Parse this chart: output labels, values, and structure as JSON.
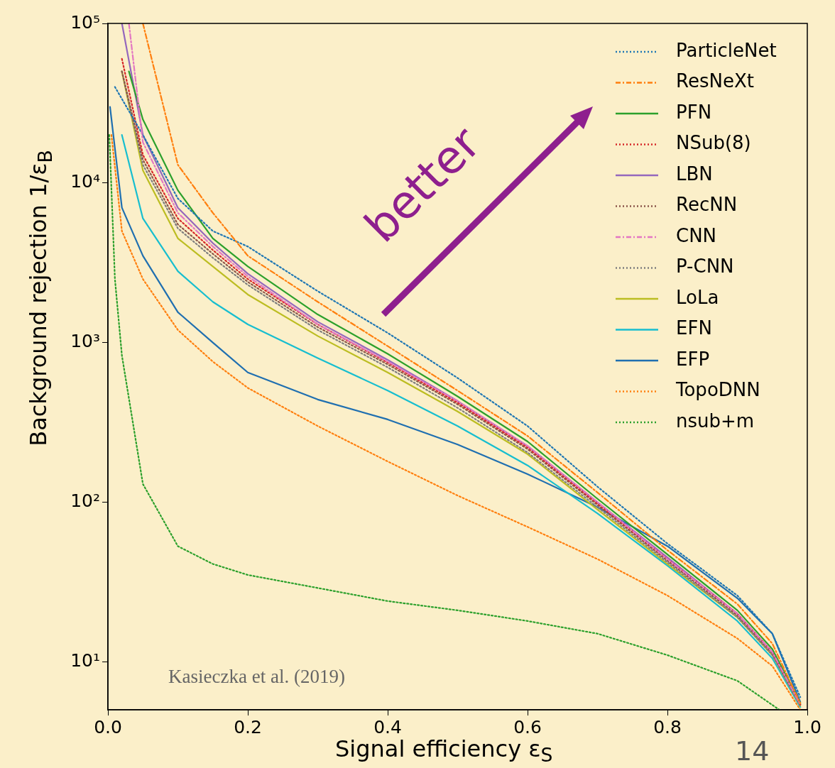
{
  "chart_data": {
    "type": "line",
    "xlabel": "Signal efficiency ε$_{S}$",
    "ylabel": "Background rejection 1/ε$_{B}$",
    "log": "y",
    "xlim": [
      0,
      1
    ],
    "ylim": [
      5,
      100000
    ],
    "xticks": [
      {
        "value": 0,
        "label": "0.0"
      },
      0.2,
      0.4,
      0.6,
      0.8,
      {
        "value": 1,
        "label": "1.0"
      }
    ],
    "yticks": [
      {
        "value": 10,
        "label": "10¹"
      },
      {
        "value": 100,
        "label": "10²"
      },
      {
        "value": 1000,
        "label": "10³"
      },
      {
        "value": 10000,
        "label": "10⁴"
      },
      {
        "value": 100000,
        "label": "10⁵"
      }
    ],
    "legend": "top right",
    "marker": "none",
    "grid": false,
    "annotations": [
      "Kasieczka et al. (2019)",
      "better",
      "14"
    ],
    "series": [
      {
        "name": "ParticleNet",
        "color": "#1f77b4",
        "line_style": "dotted",
        "x": [
          0.01,
          0.05,
          0.1,
          0.15,
          0.2,
          0.3,
          0.4,
          0.5,
          0.6,
          0.7,
          0.8,
          0.9,
          0.95,
          0.99
        ],
        "values": [
          40000,
          20000,
          8000,
          5000,
          4000,
          2100,
          1150,
          600,
          300,
          125,
          55,
          26,
          15,
          6
        ]
      },
      {
        "name": "ResNeXt",
        "color": "#ff7f0e",
        "line_style": "dashed",
        "x": [
          0.05,
          0.1,
          0.15,
          0.2,
          0.3,
          0.4,
          0.5,
          0.6,
          0.7,
          0.8,
          0.9,
          0.95,
          0.99
        ],
        "values": [
          100000,
          13000,
          6500,
          3500,
          1800,
          950,
          500,
          260,
          115,
          50,
          23,
          13,
          5.5
        ]
      },
      {
        "name": "PFN",
        "color": "#2ca02c",
        "line_style": "solid",
        "x": [
          0.03,
          0.05,
          0.1,
          0.15,
          0.2,
          0.3,
          0.4,
          0.5,
          0.6,
          0.7,
          0.8,
          0.9,
          0.95,
          0.99
        ],
        "values": [
          50000,
          25000,
          9000,
          4500,
          3000,
          1500,
          850,
          460,
          240,
          105,
          47,
          21,
          12,
          5.5
        ]
      },
      {
        "name": "NSub(8)",
        "color": "#d62728",
        "line_style": "dotted",
        "x": [
          0.02,
          0.05,
          0.1,
          0.15,
          0.2,
          0.3,
          0.4,
          0.5,
          0.6,
          0.7,
          0.8,
          0.9,
          0.95,
          0.99
        ],
        "values": [
          60000,
          15000,
          6000,
          3800,
          2500,
          1300,
          750,
          420,
          220,
          98,
          44,
          20,
          11.5,
          5.4
        ]
      },
      {
        "name": "LBN",
        "color": "#9467bd",
        "line_style": "solid",
        "x": [
          0.02,
          0.05,
          0.1,
          0.15,
          0.2,
          0.3,
          0.4,
          0.5,
          0.6,
          0.7,
          0.8,
          0.9,
          0.95,
          0.99
        ],
        "values": [
          100000,
          20000,
          7000,
          4200,
          2700,
          1350,
          780,
          430,
          225,
          100,
          45,
          20,
          11.5,
          5.4
        ]
      },
      {
        "name": "RecNN",
        "color": "#8c564b",
        "line_style": "dotted",
        "x": [
          0.02,
          0.05,
          0.1,
          0.15,
          0.2,
          0.3,
          0.4,
          0.5,
          0.6,
          0.7,
          0.8,
          0.9,
          0.95,
          0.99
        ],
        "values": [
          50000,
          14000,
          5500,
          3600,
          2400,
          1250,
          730,
          410,
          215,
          96,
          43,
          19.5,
          11.3,
          5.4
        ]
      },
      {
        "name": "CNN",
        "color": "#e377c2",
        "line_style": "dashed",
        "x": [
          0.03,
          0.05,
          0.1,
          0.15,
          0.2,
          0.3,
          0.4,
          0.5,
          0.6,
          0.7,
          0.8,
          0.9,
          0.95,
          0.99
        ],
        "values": [
          100000,
          18000,
          6500,
          4000,
          2600,
          1300,
          760,
          430,
          225,
          100,
          44,
          20,
          11.5,
          5.4
        ]
      },
      {
        "name": "P-CNN",
        "color": "#7f7f7f",
        "line_style": "dotted",
        "x": [
          0.02,
          0.05,
          0.1,
          0.15,
          0.2,
          0.3,
          0.4,
          0.5,
          0.6,
          0.7,
          0.8,
          0.9,
          0.95,
          0.99
        ],
        "values": [
          50000,
          13000,
          5200,
          3400,
          2300,
          1200,
          700,
          390,
          205,
          93,
          42,
          19,
          11,
          5.3
        ]
      },
      {
        "name": "LoLa",
        "color": "#bcbd22",
        "line_style": "solid",
        "x": [
          0.02,
          0.05,
          0.1,
          0.15,
          0.2,
          0.3,
          0.4,
          0.5,
          0.6,
          0.7,
          0.8,
          0.9,
          0.95,
          0.99
        ],
        "values": [
          50000,
          12000,
          4500,
          3000,
          2000,
          1100,
          650,
          370,
          200,
          90,
          41,
          19,
          11,
          5.3
        ]
      },
      {
        "name": "EFN",
        "color": "#17becf",
        "line_style": "solid",
        "x": [
          0.02,
          0.05,
          0.1,
          0.15,
          0.2,
          0.3,
          0.4,
          0.5,
          0.6,
          0.7,
          0.8,
          0.9,
          0.95,
          0.99
        ],
        "values": [
          20000,
          6000,
          2800,
          1800,
          1300,
          800,
          500,
          300,
          170,
          85,
          40,
          18,
          10.5,
          5.2
        ]
      },
      {
        "name": "EFP",
        "color": "#1f6fb0",
        "line_style": "solid",
        "x": [
          0.003,
          0.02,
          0.05,
          0.1,
          0.15,
          0.2,
          0.3,
          0.4,
          0.5,
          0.6,
          0.7,
          0.8,
          0.9,
          0.95,
          0.99
        ],
        "values": [
          30000,
          7000,
          3500,
          1550,
          1000,
          650,
          440,
          330,
          230,
          150,
          93,
          53,
          25,
          15,
          5.6
        ]
      },
      {
        "name": "TopoDNN",
        "color": "#ff7f0e",
        "line_style": "dotted",
        "x": [
          0.005,
          0.02,
          0.05,
          0.1,
          0.15,
          0.2,
          0.3,
          0.4,
          0.5,
          0.6,
          0.7,
          0.8,
          0.9,
          0.95,
          0.99
        ],
        "values": [
          20000,
          5000,
          2500,
          1200,
          760,
          520,
          300,
          180,
          110,
          70,
          44,
          26,
          14,
          9.4,
          5
        ]
      },
      {
        "name": "nsub+m",
        "color": "#2ca02c",
        "line_style": "dotted",
        "x": [
          0.002,
          0.01,
          0.02,
          0.05,
          0.1,
          0.15,
          0.2,
          0.3,
          0.4,
          0.5,
          0.6,
          0.7,
          0.8,
          0.9,
          0.96
        ],
        "values": [
          20000,
          2500,
          830,
          130,
          53,
          41,
          35,
          29,
          24,
          21,
          18,
          15,
          11,
          7.6,
          5
        ]
      }
    ]
  }
}
